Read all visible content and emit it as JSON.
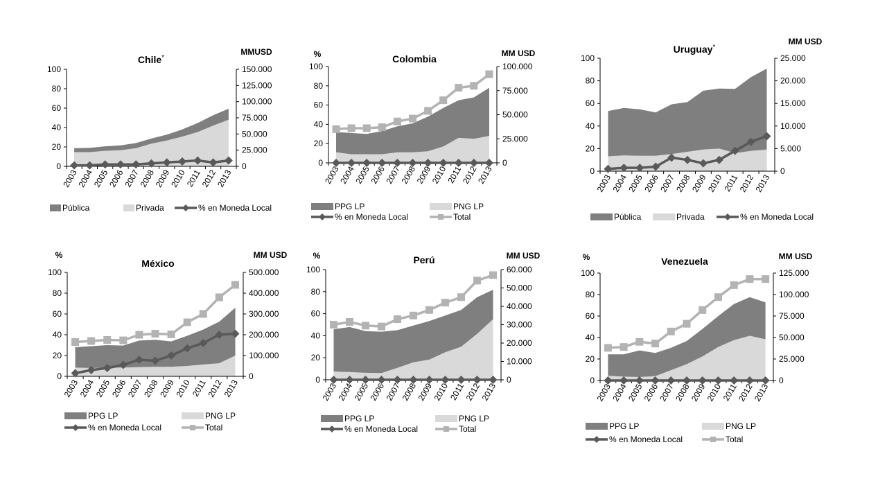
{
  "colors": {
    "public_area": "#7f7f7f",
    "private_area": "#d9d9d9",
    "pct_line": "#595959",
    "total_line": "#b3b3b3",
    "axis": "#000000"
  },
  "chart_data": [
    {
      "type": "area",
      "title": "Chile",
      "title_mark": "*",
      "left_unit": "",
      "right_unit": "MMUSD",
      "categories": [
        "2003",
        "2004",
        "2005",
        "2006",
        "2007",
        "2008",
        "2009",
        "2010",
        "2011",
        "2012",
        "2013"
      ],
      "left_ticks": [
        "0",
        "20",
        "40",
        "60",
        "80",
        "100"
      ],
      "right_ticks": [
        "0",
        "25.000",
        "50.000",
        "75.000",
        "100.000",
        "125.000",
        "150.000"
      ],
      "ylim_left": [
        0,
        100
      ],
      "ylim_right": [
        0,
        150000
      ],
      "stacked_series": [
        {
          "name": "Privada",
          "color_key": "private_area",
          "values": [
            22000,
            22000,
            24000,
            25000,
            28000,
            35000,
            40000,
            46000,
            53000,
            63000,
            72000
          ]
        },
        {
          "name": "Pública",
          "color_key": "public_area",
          "values": [
            6000,
            6500,
            7000,
            7500,
            8000,
            8000,
            9000,
            11000,
            14000,
            16000,
            17000
          ]
        }
      ],
      "line_series": [
        {
          "name": "% en Moneda Local",
          "color_key": "pct_line",
          "marker": "diamond",
          "axis": "left",
          "values": [
            1,
            1,
            2,
            2,
            2,
            3,
            4,
            5,
            6,
            4,
            6
          ]
        }
      ],
      "legend": [
        {
          "label": "Pública",
          "kind": "area",
          "color_key": "public_area"
        },
        {
          "label": "Privada",
          "kind": "area",
          "color_key": "private_area"
        },
        {
          "label": "% en Moneda Local",
          "kind": "line",
          "color_key": "pct_line",
          "marker": "diamond"
        }
      ]
    },
    {
      "type": "area",
      "title": "Colombia",
      "title_mark": "",
      "left_unit": "%",
      "right_unit": "MM USD",
      "categories": [
        "2003",
        "2004",
        "2005",
        "2006",
        "2007",
        "2008",
        "2009",
        "2010",
        "2011",
        "2012",
        "2013"
      ],
      "left_ticks": [
        "0",
        "20",
        "40",
        "60",
        "80",
        "100"
      ],
      "right_ticks": [
        "0",
        "25.000",
        "50.000",
        "75.000",
        "100.000"
      ],
      "ylim_left": [
        0,
        100
      ],
      "ylim_right": [
        0,
        100000
      ],
      "stacked_series": [
        {
          "name": "PNG LP",
          "color_key": "private_area",
          "values": [
            11000,
            9000,
            9000,
            9000,
            11000,
            11000,
            12000,
            17000,
            26000,
            25000,
            28000
          ]
        },
        {
          "name": "PPG LP",
          "color_key": "public_area",
          "values": [
            21000,
            22000,
            21000,
            24000,
            27000,
            30000,
            36000,
            40000,
            39000,
            43000,
            50000
          ]
        }
      ],
      "line_series": [
        {
          "name": "Total",
          "color_key": "total_line",
          "marker": "square",
          "axis": "right",
          "values": [
            35000,
            36000,
            36000,
            37000,
            43000,
            46000,
            54000,
            65000,
            78000,
            80000,
            92000
          ]
        },
        {
          "name": "% en Moneda Local",
          "color_key": "pct_line",
          "marker": "diamond",
          "axis": "left",
          "values": [
            0,
            0,
            0,
            0,
            0,
            0,
            0,
            0,
            0,
            0,
            0
          ]
        }
      ],
      "legend": [
        {
          "label": "PPG LP",
          "kind": "area",
          "color_key": "public_area"
        },
        {
          "label": "PNG LP",
          "kind": "area",
          "color_key": "private_area"
        },
        {
          "label": "% en Moneda Local",
          "kind": "line",
          "color_key": "pct_line",
          "marker": "diamond"
        },
        {
          "label": "Total",
          "kind": "line",
          "color_key": "total_line",
          "marker": "square"
        }
      ]
    },
    {
      "type": "area",
      "title": "Uruguay",
      "title_mark": "*",
      "left_unit": "",
      "right_unit": "MM USD",
      "categories": [
        "2003",
        "2004",
        "2005",
        "2006",
        "2007",
        "2008",
        "2009",
        "2010",
        "2011",
        "2012",
        "2013"
      ],
      "left_ticks": [
        "0",
        "20",
        "40",
        "60",
        "80",
        "100"
      ],
      "right_ticks": [
        "0",
        "5.000",
        "10.000",
        "15.000",
        "20.000",
        "25.000"
      ],
      "ylim_left": [
        0,
        100
      ],
      "ylim_right": [
        0,
        25000
      ],
      "stacked_series": [
        {
          "name": "Privada",
          "color_key": "private_area",
          "values": [
            3300,
            3500,
            3400,
            3400,
            3800,
            4300,
            4800,
            5000,
            4000,
            4500,
            4800
          ]
        },
        {
          "name": "Pública",
          "color_key": "public_area",
          "values": [
            10000,
            10500,
            10300,
            9600,
            11000,
            11000,
            13000,
            13300,
            14200,
            16300,
            17900
          ]
        }
      ],
      "line_series": [
        {
          "name": "% en Moneda Local",
          "color_key": "pct_line",
          "marker": "diamond",
          "axis": "left",
          "values": [
            2,
            3,
            3,
            4,
            12,
            10,
            7,
            10,
            18,
            26,
            31
          ]
        }
      ],
      "legend": [
        {
          "label": "Pública",
          "kind": "area",
          "color_key": "public_area"
        },
        {
          "label": "Privada",
          "kind": "area",
          "color_key": "private_area"
        },
        {
          "label": "% en Moneda Local",
          "kind": "line",
          "color_key": "pct_line",
          "marker": "diamond"
        }
      ]
    },
    {
      "type": "area",
      "title": "México",
      "title_mark": "",
      "left_unit": "%",
      "right_unit": "MM USD",
      "categories": [
        "2003",
        "2004",
        "2005",
        "2006",
        "2007",
        "2008",
        "2009",
        "2010",
        "2011",
        "2012",
        "2013"
      ],
      "left_ticks": [
        "0",
        "20",
        "40",
        "60",
        "80",
        "100"
      ],
      "right_ticks": [
        "0",
        "100.000",
        "200.000",
        "300.000",
        "400.000",
        "500.000"
      ],
      "ylim_left": [
        0,
        100
      ],
      "ylim_right": [
        0,
        500000
      ],
      "stacked_series": [
        {
          "name": "PNG LP",
          "color_key": "private_area",
          "values": [
            42000,
            40000,
            42000,
            42000,
            44000,
            46000,
            46000,
            50000,
            57000,
            63000,
            100000
          ]
        },
        {
          "name": "PPG LP",
          "color_key": "public_area",
          "values": [
            98000,
            105000,
            108000,
            106000,
            128000,
            130000,
            122000,
            145000,
            168000,
            200000,
            230000
          ]
        }
      ],
      "line_series": [
        {
          "name": "Total",
          "color_key": "total_line",
          "marker": "square",
          "axis": "right",
          "values": [
            165000,
            170000,
            175000,
            173000,
            200000,
            205000,
            202000,
            260000,
            300000,
            380000,
            440000
          ]
        },
        {
          "name": "% en Moneda Local",
          "color_key": "pct_line",
          "marker": "diamond",
          "axis": "left",
          "values": [
            3,
            6,
            8,
            11,
            16,
            15,
            20,
            27,
            32,
            40,
            41
          ]
        }
      ],
      "legend": [
        {
          "label": "PPG LP",
          "kind": "area",
          "color_key": "public_area"
        },
        {
          "label": "PNG LP",
          "kind": "area",
          "color_key": "private_area"
        },
        {
          "label": "% en Moneda Local",
          "kind": "line",
          "color_key": "pct_line",
          "marker": "diamond"
        },
        {
          "label": "Total",
          "kind": "line",
          "color_key": "total_line",
          "marker": "square"
        }
      ]
    },
    {
      "type": "area",
      "title": "Perú",
      "title_mark": "",
      "left_unit": "%",
      "right_unit": "MM USD",
      "categories": [
        "2003",
        "2004",
        "2005",
        "2006",
        "2007",
        "2008",
        "2009",
        "2010",
        "2011",
        "2012",
        "2013"
      ],
      "left_ticks": [
        "0",
        "20",
        "40",
        "60",
        "80",
        "100"
      ],
      "right_ticks": [
        "0",
        "10.000",
        "20.000",
        "30.000",
        "40.000",
        "50.000",
        "60.000"
      ],
      "ylim_left": [
        0,
        100
      ],
      "ylim_right": [
        0,
        60000
      ],
      "stacked_series": [
        {
          "name": "PNG LP",
          "color_key": "private_area",
          "values": [
            4500,
            4200,
            3800,
            3700,
            6500,
            9500,
            11000,
            15000,
            18000,
            25000,
            33000
          ]
        },
        {
          "name": "PPG LP",
          "color_key": "public_area",
          "values": [
            23000,
            24500,
            22700,
            22500,
            20500,
            20000,
            21000,
            20000,
            20000,
            20000,
            16000
          ]
        }
      ],
      "line_series": [
        {
          "name": "Total",
          "color_key": "total_line",
          "marker": "square",
          "axis": "right",
          "values": [
            30000,
            31500,
            29500,
            29000,
            33000,
            35000,
            38000,
            42000,
            45000,
            54000,
            57000
          ]
        },
        {
          "name": "% en Moneda Local",
          "color_key": "pct_line",
          "marker": "diamond",
          "axis": "left",
          "values": [
            0,
            0,
            0,
            0,
            0,
            0,
            0,
            0,
            0,
            0,
            0
          ]
        }
      ],
      "legend": [
        {
          "label": "PPG LP",
          "kind": "area",
          "color_key": "public_area"
        },
        {
          "label": "PNG LP",
          "kind": "area",
          "color_key": "private_area"
        },
        {
          "label": "% en Moneda Local",
          "kind": "line",
          "color_key": "pct_line",
          "marker": "diamond"
        },
        {
          "label": "Total",
          "kind": "line",
          "color_key": "total_line",
          "marker": "square"
        }
      ]
    },
    {
      "type": "area",
      "title": "Venezuela",
      "title_mark": "",
      "left_unit": "%",
      "right_unit": "MM USD",
      "categories": [
        "2003",
        "2004",
        "2005",
        "2006",
        "2007",
        "2008",
        "2009",
        "2010",
        "2011",
        "2012",
        "2013"
      ],
      "left_ticks": [
        "0",
        "20",
        "40",
        "60",
        "80",
        "100"
      ],
      "right_ticks": [
        "0",
        "25.000",
        "50.000",
        "75.000",
        "100.000",
        "125.000"
      ],
      "ylim_left": [
        0,
        100
      ],
      "ylim_right": [
        0,
        125000
      ],
      "stacked_series": [
        {
          "name": "PNG LP",
          "color_key": "private_area",
          "values": [
            5500,
            4500,
            4000,
            5000,
            12000,
            19000,
            28000,
            39000,
            47000,
            52000,
            48000
          ]
        },
        {
          "name": "PPG LP",
          "color_key": "public_area",
          "values": [
            25000,
            26000,
            31000,
            27000,
            26000,
            27000,
            32000,
            36000,
            42000,
            45000,
            43000
          ]
        }
      ],
      "line_series": [
        {
          "name": "Total",
          "color_key": "total_line",
          "marker": "square",
          "axis": "right",
          "values": [
            38000,
            39000,
            45000,
            43000,
            57000,
            66000,
            82000,
            97000,
            111000,
            118000,
            118000
          ]
        },
        {
          "name": "% en Moneda Local",
          "color_key": "pct_line",
          "marker": "diamond",
          "axis": "left",
          "values": [
            0,
            0,
            0,
            0,
            0,
            0,
            0,
            0,
            0,
            0,
            0
          ]
        }
      ],
      "legend": [
        {
          "label": "PPG LP",
          "kind": "area",
          "color_key": "public_area"
        },
        {
          "label": "PNG LP",
          "kind": "area",
          "color_key": "private_area"
        },
        {
          "label": "% en Moneda Local",
          "kind": "line",
          "color_key": "pct_line",
          "marker": "diamond"
        },
        {
          "label": "Total",
          "kind": "line",
          "color_key": "total_line",
          "marker": "square"
        }
      ]
    }
  ]
}
